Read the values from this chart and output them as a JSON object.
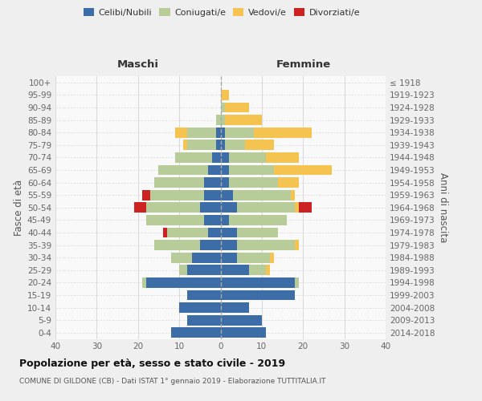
{
  "age_groups": [
    "0-4",
    "5-9",
    "10-14",
    "15-19",
    "20-24",
    "25-29",
    "30-34",
    "35-39",
    "40-44",
    "45-49",
    "50-54",
    "55-59",
    "60-64",
    "65-69",
    "70-74",
    "75-79",
    "80-84",
    "85-89",
    "90-94",
    "95-99",
    "100+"
  ],
  "birth_years": [
    "2014-2018",
    "2009-2013",
    "2004-2008",
    "1999-2003",
    "1994-1998",
    "1989-1993",
    "1984-1988",
    "1979-1983",
    "1974-1978",
    "1969-1973",
    "1964-1968",
    "1959-1963",
    "1954-1958",
    "1949-1953",
    "1944-1948",
    "1939-1943",
    "1934-1938",
    "1929-1933",
    "1924-1928",
    "1919-1923",
    "≤ 1918"
  ],
  "colors": {
    "celibi": "#3c6da6",
    "coniugati": "#b8cc9a",
    "vedovi": "#f5c350",
    "divorziati": "#cc2222"
  },
  "legend_labels": [
    "Celibi/Nubili",
    "Coniugati/e",
    "Vedovi/e",
    "Divorziati/e"
  ],
  "maschi": {
    "celibi": [
      12,
      8,
      10,
      8,
      18,
      8,
      7,
      5,
      3,
      4,
      5,
      4,
      4,
      3,
      2,
      1,
      1,
      0,
      0,
      0,
      0
    ],
    "coniugati": [
      0,
      0,
      0,
      0,
      1,
      2,
      5,
      11,
      10,
      14,
      13,
      13,
      12,
      12,
      9,
      7,
      7,
      1,
      0,
      0,
      0
    ],
    "vedovi": [
      0,
      0,
      0,
      0,
      0,
      0,
      0,
      0,
      0,
      0,
      0,
      0,
      0,
      0,
      0,
      1,
      3,
      0,
      0,
      0,
      0
    ],
    "divorziati": [
      0,
      0,
      0,
      0,
      0,
      0,
      0,
      0,
      1,
      0,
      3,
      2,
      0,
      0,
      0,
      0,
      0,
      0,
      0,
      0,
      0
    ]
  },
  "femmine": {
    "nubili": [
      11,
      10,
      7,
      18,
      18,
      7,
      4,
      4,
      4,
      2,
      4,
      3,
      2,
      2,
      2,
      1,
      1,
      0,
      0,
      0,
      0
    ],
    "coniugate": [
      0,
      0,
      0,
      0,
      1,
      4,
      8,
      14,
      10,
      14,
      14,
      14,
      12,
      11,
      9,
      5,
      7,
      1,
      1,
      0,
      0
    ],
    "vedove": [
      0,
      0,
      0,
      0,
      0,
      1,
      1,
      1,
      0,
      0,
      1,
      1,
      5,
      14,
      8,
      7,
      14,
      9,
      6,
      2,
      0
    ],
    "divorziate": [
      0,
      0,
      0,
      0,
      0,
      0,
      0,
      0,
      0,
      0,
      3,
      0,
      0,
      0,
      0,
      0,
      0,
      0,
      0,
      0,
      0
    ]
  },
  "xlim": [
    -40,
    40
  ],
  "xticks": [
    -40,
    -30,
    -20,
    -10,
    0,
    10,
    20,
    30,
    40
  ],
  "xticklabels": [
    "40",
    "30",
    "20",
    "10",
    "0",
    "10",
    "20",
    "30",
    "40"
  ],
  "title": "Popolazione per età, sesso e stato civile - 2019",
  "subtitle": "COMUNE DI GILDONE (CB) - Dati ISTAT 1° gennaio 2019 - Elaborazione TUTTITALIA.IT",
  "ylabel_left": "Fasce di età",
  "ylabel_right": "Anni di nascita",
  "header_left": "Maschi",
  "header_right": "Femmine",
  "bg_color": "#efefef",
  "plot_bg": "#f9f9f9"
}
